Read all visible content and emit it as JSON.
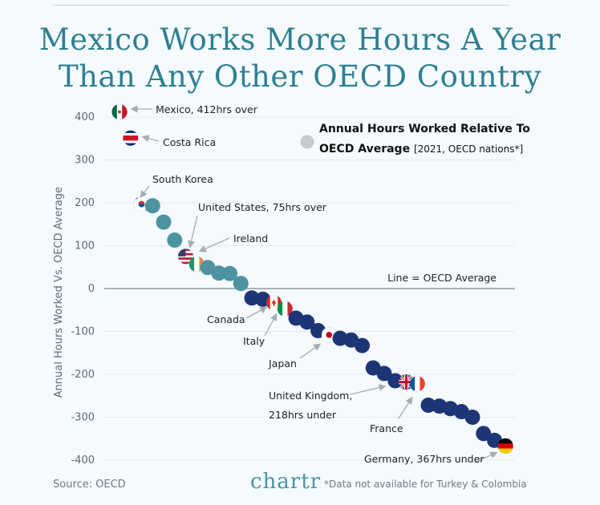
{
  "header": {
    "title_line1": "Mexico Works More Hours A Year",
    "title_line2": "Than Any Other OECD Country"
  },
  "chart_data": {
    "type": "scatter",
    "ylabel": "Annual Hours Worked Vs. OECD Average",
    "ylim": [
      -400,
      420
    ],
    "yticks": [
      400,
      300,
      200,
      100,
      0,
      -100,
      -200,
      -300,
      -400
    ],
    "grid": true,
    "reference_line": {
      "value": 0,
      "label": "Line = OECD Average"
    },
    "legend": {
      "title_line1": "Annual Hours Worked Relative To",
      "title_line2": "OECD Average",
      "subtitle": "[2021, OECD nations*]"
    },
    "points": [
      {
        "rank": 1,
        "value": 412,
        "flag": "mexico"
      },
      {
        "rank": 2,
        "value": 351,
        "flag": "costa-rica"
      },
      {
        "rank": 3,
        "value": 197,
        "flag": "south-korea"
      },
      {
        "rank": 4,
        "value": 193
      },
      {
        "rank": 5,
        "value": 155
      },
      {
        "rank": 6,
        "value": 113
      },
      {
        "rank": 7,
        "value": 75,
        "flag": "usa"
      },
      {
        "rank": 8,
        "value": 57,
        "flag": "ireland"
      },
      {
        "rank": 9,
        "value": 49
      },
      {
        "rank": 10,
        "value": 36
      },
      {
        "rank": 11,
        "value": 35
      },
      {
        "rank": 12,
        "value": 12
      },
      {
        "rank": 13,
        "value": -22
      },
      {
        "rank": 14,
        "value": -25
      },
      {
        "rank": 15,
        "value": -33,
        "flag": "canada"
      },
      {
        "rank": 16,
        "value": -47,
        "flag": "italy"
      },
      {
        "rank": 17,
        "value": -69
      },
      {
        "rank": 18,
        "value": -78
      },
      {
        "rank": 19,
        "value": -98
      },
      {
        "rank": 20,
        "value": -108,
        "flag": "japan"
      },
      {
        "rank": 21,
        "value": -116
      },
      {
        "rank": 22,
        "value": -120
      },
      {
        "rank": 23,
        "value": -133
      },
      {
        "rank": 24,
        "value": -185
      },
      {
        "rank": 25,
        "value": -198
      },
      {
        "rank": 26,
        "value": -215
      },
      {
        "rank": 27,
        "value": -218,
        "flag": "uk"
      },
      {
        "rank": 28,
        "value": -222,
        "flag": "france"
      },
      {
        "rank": 29,
        "value": -272
      },
      {
        "rank": 30,
        "value": -274
      },
      {
        "rank": 31,
        "value": -280
      },
      {
        "rank": 32,
        "value": -287
      },
      {
        "rank": 33,
        "value": -300
      },
      {
        "rank": 34,
        "value": -338
      },
      {
        "rank": 35,
        "value": -354
      },
      {
        "rank": 36,
        "value": -367,
        "flag": "germany"
      }
    ],
    "annotations": [
      {
        "rank": 1,
        "lines": [
          "Mexico, 412hrs over"
        ]
      },
      {
        "rank": 2,
        "lines": [
          "Costa Rica"
        ]
      },
      {
        "rank": 3,
        "lines": [
          "South Korea"
        ]
      },
      {
        "rank": 7,
        "lines": [
          "United States, 75hrs over"
        ]
      },
      {
        "rank": 8,
        "lines": [
          "Ireland"
        ]
      },
      {
        "rank": 15,
        "lines": [
          "Canada"
        ]
      },
      {
        "rank": 16,
        "lines": [
          "Italy"
        ]
      },
      {
        "rank": 20,
        "lines": [
          "Japan"
        ]
      },
      {
        "rank": 27,
        "lines": [
          "United Kingdom,",
          "218hrs under"
        ]
      },
      {
        "rank": 28,
        "lines": [
          "France"
        ]
      },
      {
        "rank": 36,
        "lines": [
          "Germany, 367hrs under"
        ]
      }
    ],
    "colors": {
      "above_average": "#4e93a2",
      "below_average": "#1d3577",
      "legend_dot": "#c9c9c9",
      "title": "#2f7f92"
    }
  },
  "footer": {
    "source": "Source: OECD",
    "logo": "chartr",
    "note": "*Data not available for Turkey & Colombia"
  }
}
